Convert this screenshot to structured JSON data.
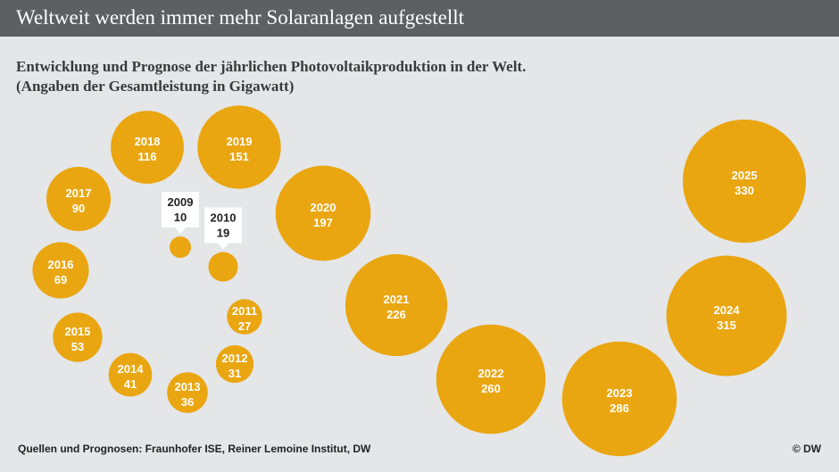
{
  "header": {
    "title": "Weltweit werden immer mehr Solaranlagen aufgestellt"
  },
  "subtitle": {
    "line1": "Entwicklung und Prognose der jährlichen Photovoltaikproduktion in der Welt.",
    "line2": "(Angaben der Gesamtleistung in Gigawatt)"
  },
  "footer": {
    "source": "Quellen und Prognosen: Fraunhofer ISE, Reiner Lemoine Institut,  DW",
    "copyright": "© DW"
  },
  "colors": {
    "bubble": "#eaa611",
    "callout_bg": "#ffffff",
    "callout_text": "#222222",
    "header_bg": "#5d6063",
    "background": "#e4e6e8"
  },
  "chart_data": {
    "type": "bubble",
    "unit": "Gigawatt",
    "points": [
      {
        "year": "2009",
        "value": 10
      },
      {
        "year": "2010",
        "value": 19
      },
      {
        "year": "2011",
        "value": 27
      },
      {
        "year": "2012",
        "value": 31
      },
      {
        "year": "2013",
        "value": 36
      },
      {
        "year": "2014",
        "value": 41
      },
      {
        "year": "2015",
        "value": 53
      },
      {
        "year": "2016",
        "value": 69
      },
      {
        "year": "2017",
        "value": 90
      },
      {
        "year": "2018",
        "value": 116
      },
      {
        "year": "2019",
        "value": 151
      },
      {
        "year": "2020",
        "value": 197
      },
      {
        "year": "2021",
        "value": 226
      },
      {
        "year": "2022",
        "value": 260
      },
      {
        "year": "2023",
        "value": 286
      },
      {
        "year": "2024",
        "value": 315
      },
      {
        "year": "2025",
        "value": 330
      }
    ]
  }
}
